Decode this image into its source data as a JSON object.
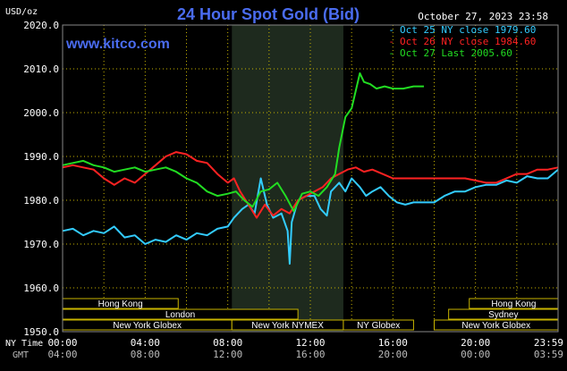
{
  "header": {
    "title": "24 Hour Spot Gold (Bid)",
    "y_unit": "USD/oz",
    "watermark": "www.kitco.com",
    "date": "October 27, 2023 23:58"
  },
  "legend": [
    {
      "label": "Oct 25 NY close 1979.60",
      "color": "#33ccff"
    },
    {
      "label": "Oct 26 NY close 1984.60",
      "color": "#ff2222"
    },
    {
      "label": "Oct 27 Last 2005.60",
      "color": "#22dd22"
    }
  ],
  "axis_labels": {
    "ny_time": "NY Time",
    "gmt": "GMT"
  },
  "colors": {
    "grid": "#c8b400",
    "axis_text": "#ffffff",
    "gmt_text": "#bbbbbb",
    "title": "#4a6cf0",
    "session_box": "#c8b400",
    "nymex_shade": "#1e2a1e"
  },
  "sessions": [
    {
      "label": "Hong Kong",
      "start_h": 0.0,
      "end_h": 5.6,
      "row": 0
    },
    {
      "label": "London",
      "start_h": 0.0,
      "end_h": 11.4,
      "row": 1
    },
    {
      "label": "New York Globex",
      "start_h": 0.0,
      "end_h": 8.2,
      "row": 2
    },
    {
      "label": "New York NYMEX",
      "start_h": 8.2,
      "end_h": 13.6,
      "row": 2
    },
    {
      "label": "NY Globex",
      "start_h": 13.6,
      "end_h": 17.0,
      "row": 2
    },
    {
      "label": "Hong Kong",
      "start_h": 19.7,
      "end_h": 24.0,
      "row": 0
    },
    {
      "label": "Sydney",
      "start_h": 18.7,
      "end_h": 24.0,
      "row": 1
    },
    {
      "label": "New York Globex",
      "start_h": 18.0,
      "end_h": 24.0,
      "row": 2
    }
  ],
  "chart_data": {
    "type": "line",
    "title": "24 Hour Spot Gold (Bid)",
    "ylabel": "USD/oz",
    "xlim_hours": [
      0,
      24
    ],
    "ylim": [
      1950,
      2020
    ],
    "yticks": [
      "2020.0",
      "2010.0",
      "2000.0",
      "1990.0",
      "1980.0",
      "1970.0",
      "1960.0",
      "1950.0"
    ],
    "ytick_values": [
      2020,
      2010,
      2000,
      1990,
      1980,
      1970,
      1960,
      1950
    ],
    "xticks_ny": [
      "00:00",
      "04:00",
      "08:00",
      "12:00",
      "16:00",
      "20:00",
      "23:59"
    ],
    "xticks_gmt": [
      "04:00",
      "08:00",
      "12:00",
      "16:00",
      "20:00",
      "00:00",
      "03:59"
    ],
    "xtick_hours": [
      0,
      4,
      8,
      12,
      16,
      20,
      23.98
    ],
    "shaded_period_hours": [
      8.2,
      13.6
    ],
    "grid": true,
    "legend_position": "top-right",
    "series": [
      {
        "name": "Oct 25 NY close 1979.60",
        "color": "#33ccff",
        "points": [
          [
            0,
            1973
          ],
          [
            0.5,
            1973.5
          ],
          [
            1,
            1972
          ],
          [
            1.5,
            1973
          ],
          [
            2,
            1972.5
          ],
          [
            2.5,
            1974
          ],
          [
            3,
            1971.5
          ],
          [
            3.5,
            1972
          ],
          [
            4,
            1970
          ],
          [
            4.5,
            1971
          ],
          [
            5,
            1970.5
          ],
          [
            5.5,
            1972
          ],
          [
            6,
            1971
          ],
          [
            6.5,
            1972.5
          ],
          [
            7,
            1972
          ],
          [
            7.5,
            1973.5
          ],
          [
            8,
            1974
          ],
          [
            8.3,
            1976
          ],
          [
            8.7,
            1978
          ],
          [
            9,
            1979
          ],
          [
            9.3,
            1977
          ],
          [
            9.6,
            1985
          ],
          [
            9.9,
            1979
          ],
          [
            10.2,
            1976
          ],
          [
            10.6,
            1977
          ],
          [
            10.9,
            1973
          ],
          [
            11.0,
            1965.5
          ],
          [
            11.1,
            1975
          ],
          [
            11.4,
            1980
          ],
          [
            11.8,
            1981
          ],
          [
            12.2,
            1981
          ],
          [
            12.5,
            1978
          ],
          [
            12.8,
            1976.5
          ],
          [
            13.0,
            1982
          ],
          [
            13.4,
            1984
          ],
          [
            13.7,
            1982
          ],
          [
            14.0,
            1985
          ],
          [
            14.4,
            1983
          ],
          [
            14.7,
            1981
          ],
          [
            15.0,
            1982
          ],
          [
            15.4,
            1983
          ],
          [
            15.8,
            1981
          ],
          [
            16.2,
            1979.5
          ],
          [
            16.6,
            1979
          ],
          [
            17.0,
            1979.5
          ],
          [
            17.5,
            1979.5
          ],
          [
            18.0,
            1979.5
          ],
          [
            18.5,
            1981
          ],
          [
            19.0,
            1982
          ],
          [
            19.5,
            1982
          ],
          [
            20.0,
            1983
          ],
          [
            20.5,
            1983.5
          ],
          [
            21.0,
            1983.5
          ],
          [
            21.5,
            1984.5
          ],
          [
            22.0,
            1984
          ],
          [
            22.5,
            1985.5
          ],
          [
            23.0,
            1985
          ],
          [
            23.5,
            1985
          ],
          [
            24.0,
            1987
          ]
        ]
      },
      {
        "name": "Oct 26 NY close 1984.60",
        "color": "#ff2222",
        "points": [
          [
            0,
            1987.5
          ],
          [
            0.5,
            1988
          ],
          [
            1,
            1987.5
          ],
          [
            1.5,
            1987
          ],
          [
            2,
            1985
          ],
          [
            2.5,
            1983.5
          ],
          [
            3,
            1985
          ],
          [
            3.5,
            1984
          ],
          [
            4,
            1986
          ],
          [
            4.5,
            1988
          ],
          [
            5,
            1990
          ],
          [
            5.5,
            1991
          ],
          [
            6,
            1990.5
          ],
          [
            6.5,
            1989
          ],
          [
            7,
            1988.5
          ],
          [
            7.5,
            1986
          ],
          [
            8,
            1984
          ],
          [
            8.3,
            1985
          ],
          [
            8.6,
            1982
          ],
          [
            9,
            1979
          ],
          [
            9.4,
            1976
          ],
          [
            9.8,
            1979
          ],
          [
            10.2,
            1976.5
          ],
          [
            10.6,
            1978
          ],
          [
            11.0,
            1977
          ],
          [
            11.4,
            1980
          ],
          [
            11.8,
            1981
          ],
          [
            12.2,
            1982
          ],
          [
            12.6,
            1983
          ],
          [
            13.0,
            1985
          ],
          [
            13.4,
            1986
          ],
          [
            13.8,
            1987
          ],
          [
            14.2,
            1987.5
          ],
          [
            14.6,
            1986.5
          ],
          [
            15.0,
            1987
          ],
          [
            15.5,
            1986
          ],
          [
            16.0,
            1985
          ],
          [
            16.5,
            1985
          ],
          [
            17.0,
            1985
          ],
          [
            17.5,
            1985
          ],
          [
            18.0,
            1985
          ],
          [
            18.5,
            1985
          ],
          [
            19.0,
            1985
          ],
          [
            19.5,
            1985
          ],
          [
            20.0,
            1984.5
          ],
          [
            20.5,
            1984
          ],
          [
            21.0,
            1984
          ],
          [
            21.5,
            1985
          ],
          [
            22.0,
            1986
          ],
          [
            22.5,
            1986
          ],
          [
            23.0,
            1987
          ],
          [
            23.5,
            1987
          ],
          [
            24.0,
            1987.5
          ]
        ]
      },
      {
        "name": "Oct 27 Last 2005.60",
        "color": "#22dd22",
        "points": [
          [
            0,
            1988
          ],
          [
            0.5,
            1988.5
          ],
          [
            1,
            1989
          ],
          [
            1.5,
            1988
          ],
          [
            2,
            1987.5
          ],
          [
            2.5,
            1986.5
          ],
          [
            3,
            1987
          ],
          [
            3.5,
            1987.5
          ],
          [
            4,
            1986.5
          ],
          [
            4.5,
            1987
          ],
          [
            5,
            1987.5
          ],
          [
            5.5,
            1986.5
          ],
          [
            6,
            1985
          ],
          [
            6.5,
            1984
          ],
          [
            7,
            1982
          ],
          [
            7.5,
            1981
          ],
          [
            8,
            1981.5
          ],
          [
            8.4,
            1982
          ],
          [
            8.8,
            1980
          ],
          [
            9.2,
            1978.5
          ],
          [
            9.6,
            1982
          ],
          [
            10.0,
            1982.5
          ],
          [
            10.4,
            1984
          ],
          [
            10.8,
            1981
          ],
          [
            11.2,
            1977.5
          ],
          [
            11.6,
            1981.5
          ],
          [
            12.0,
            1982
          ],
          [
            12.4,
            1981
          ],
          [
            12.8,
            1983
          ],
          [
            13.2,
            1986
          ],
          [
            13.4,
            1992
          ],
          [
            13.7,
            1999
          ],
          [
            14.0,
            2001
          ],
          [
            14.2,
            2005
          ],
          [
            14.4,
            2009
          ],
          [
            14.6,
            2007
          ],
          [
            14.9,
            2006.5
          ],
          [
            15.2,
            2005.5
          ],
          [
            15.6,
            2006
          ],
          [
            16.0,
            2005.5
          ],
          [
            16.5,
            2005.5
          ],
          [
            17.0,
            2006
          ],
          [
            17.5,
            2006
          ]
        ]
      }
    ]
  }
}
